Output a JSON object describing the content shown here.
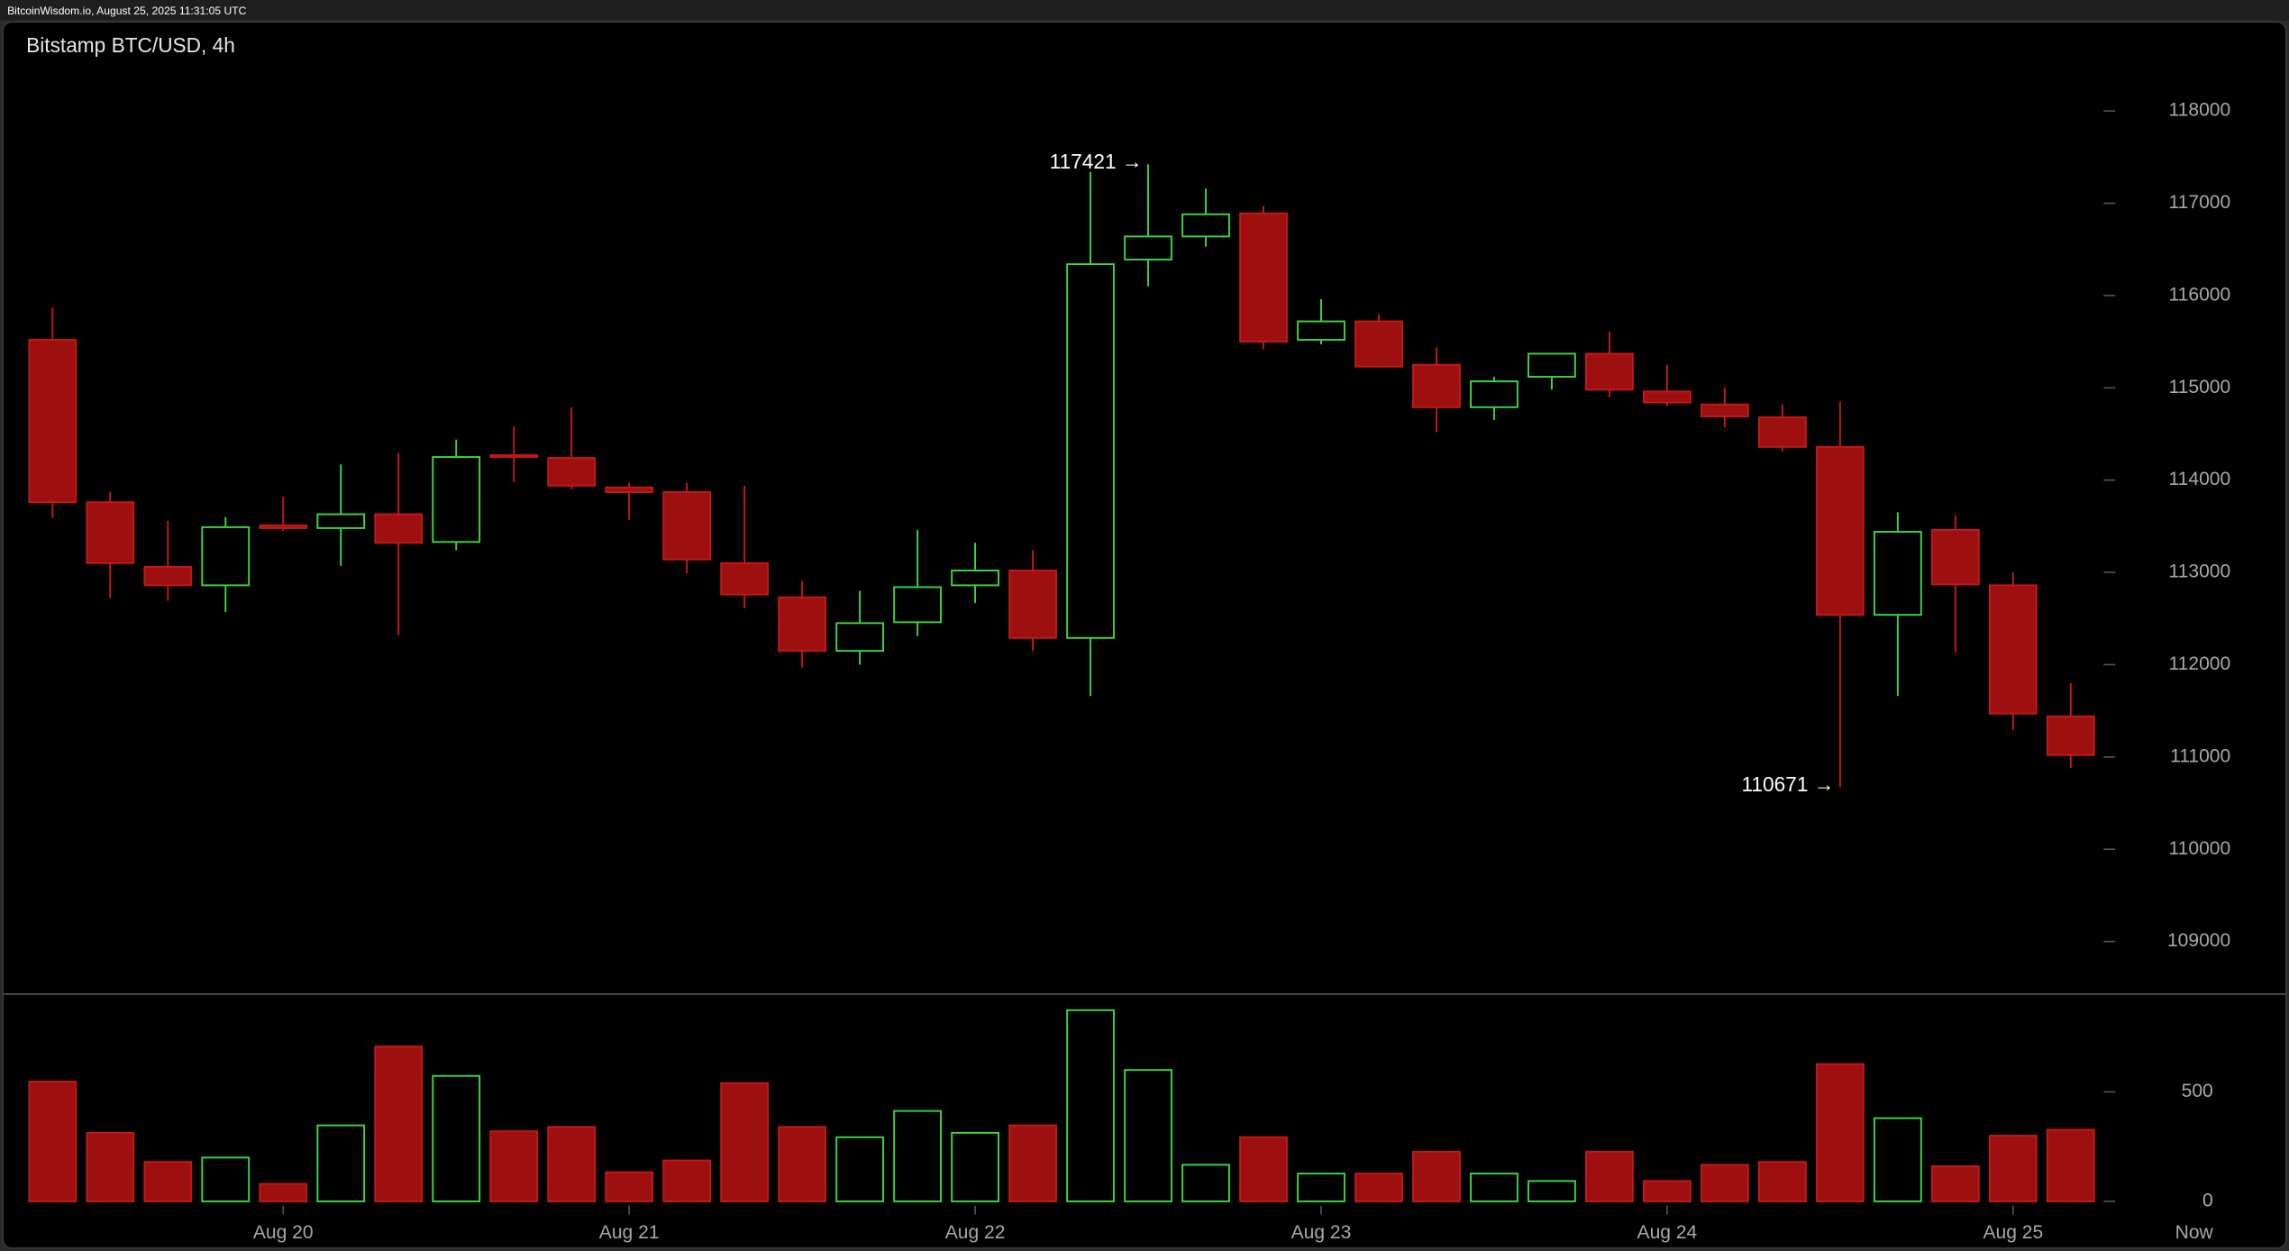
{
  "chart_data": {
    "type": "candlestick",
    "header": "BitcoinWisdom.io, August 25, 2025 11:31:05 UTC",
    "title": "Bitstamp BTC/USD, 4h",
    "categories": [
      null,
      null,
      null,
      null,
      "Aug 20",
      null,
      null,
      null,
      null,
      null,
      "Aug 21",
      null,
      null,
      null,
      null,
      null,
      "Aug 22",
      null,
      null,
      null,
      null,
      null,
      "Aug 23",
      null,
      null,
      null,
      null,
      null,
      "Aug 24",
      null,
      null,
      null,
      null,
      null,
      "Aug 25",
      null
    ],
    "now_label": "Now",
    "open": [
      115520,
      113760,
      113060,
      112860,
      113510,
      113480,
      113630,
      113330,
      114270,
      114240,
      113920,
      113870,
      113100,
      112730,
      112150,
      112460,
      112860,
      113020,
      112290,
      116390,
      116640,
      116890,
      115520,
      115720,
      115250,
      114790,
      115120,
      115370,
      114960,
      114820,
      114680,
      114360,
      112540,
      113460,
      112860,
      111440
    ],
    "high": [
      115870,
      113870,
      113560,
      113600,
      113820,
      114170,
      114300,
      114440,
      114580,
      114790,
      113970,
      113970,
      113940,
      112910,
      112800,
      113460,
      113320,
      113240,
      117340,
      117421,
      117160,
      116970,
      115960,
      115800,
      115440,
      115120,
      115380,
      115610,
      115250,
      115000,
      114820,
      114850,
      113650,
      113620,
      113000,
      111800
    ],
    "low": [
      113590,
      112720,
      112690,
      112570,
      113450,
      113070,
      112320,
      113240,
      113980,
      113900,
      113570,
      112990,
      112610,
      111970,
      112000,
      112310,
      112670,
      112150,
      111660,
      116100,
      116530,
      115420,
      115470,
      115220,
      114520,
      114650,
      114980,
      114900,
      114800,
      114570,
      114310,
      110671,
      111660,
      112130,
      111290,
      110880
    ],
    "close": [
      113760,
      113100,
      112860,
      113490,
      113480,
      113630,
      113320,
      114250,
      114250,
      113940,
      113870,
      113140,
      112760,
      112150,
      112450,
      112840,
      113020,
      112290,
      116340,
      116640,
      116880,
      115500,
      115720,
      115230,
      114790,
      115070,
      115370,
      114980,
      114840,
      114690,
      114360,
      112540,
      113440,
      112870,
      111470,
      111020
    ],
    "volume": [
      547,
      313,
      180,
      200,
      80,
      347,
      707,
      573,
      320,
      340,
      133,
      187,
      540,
      340,
      293,
      413,
      313,
      347,
      873,
      600,
      167,
      293,
      127,
      127,
      227,
      127,
      93,
      227,
      93,
      167,
      180,
      627,
      380,
      160,
      300,
      327
    ],
    "up_color": "#3fd43f",
    "down_color": "#9e0f0f",
    "ylim": [
      108500,
      119000
    ],
    "yticks": [
      109000,
      110000,
      111000,
      112000,
      113000,
      114000,
      115000,
      116000,
      117000,
      118000
    ],
    "volume_ylim": [
      0,
      950
    ],
    "volume_yticks": [
      0,
      500
    ],
    "annotations": {
      "high": "117421 →",
      "low": "110671 →"
    }
  }
}
